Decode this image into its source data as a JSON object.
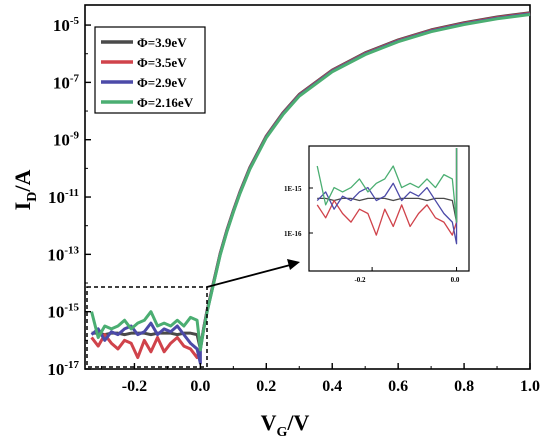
{
  "chart_data": {
    "type": "line",
    "xlabel_main": "V",
    "xlabel_sub": "G",
    "xlabel_rest": "/V",
    "ylabel_main": "I",
    "ylabel_sub": "D",
    "ylabel_rest": "/A",
    "xlim": [
      -0.35,
      1.0
    ],
    "ylim_exp": [
      -17,
      -4.3
    ],
    "yscale": "log",
    "x_ticks": [
      {
        "v": -0.2,
        "label": "-0.2"
      },
      {
        "v": 0.0,
        "label": "0.0"
      },
      {
        "v": 0.2,
        "label": "0.2"
      },
      {
        "v": 0.4,
        "label": "0.4"
      },
      {
        "v": 0.6,
        "label": "0.6"
      },
      {
        "v": 0.8,
        "label": "0.8"
      },
      {
        "v": 1.0,
        "label": "1.0"
      }
    ],
    "y_ticks": [
      {
        "exp": -5,
        "base": "10",
        "sup": "-5"
      },
      {
        "exp": -7,
        "base": "10",
        "sup": "-7"
      },
      {
        "exp": -9,
        "base": "10",
        "sup": "-9"
      },
      {
        "exp": -11,
        "base": "10",
        "sup": "-11"
      },
      {
        "exp": -13,
        "base": "10",
        "sup": "-13"
      },
      {
        "exp": -15,
        "base": "10",
        "sup": "-15"
      },
      {
        "exp": -17,
        "base": "10",
        "sup": "-17"
      }
    ],
    "legend": [
      {
        "label": "Φ=3.9eV",
        "color": "#4a4a4a"
      },
      {
        "label": "Φ=3.5eV",
        "color": "#d0434b"
      },
      {
        "label": "Φ=2.9eV",
        "color": "#4c4aa8"
      },
      {
        "label": "Φ=2.16eV",
        "color": "#4bae72"
      }
    ],
    "legend_position": "top-left",
    "on_curve": [
      [
        0.0,
        -16.3
      ],
      [
        0.01,
        -15.6
      ],
      [
        0.02,
        -15.0
      ],
      [
        0.04,
        -14.0
      ],
      [
        0.06,
        -13.0
      ],
      [
        0.08,
        -12.2
      ],
      [
        0.1,
        -11.5
      ],
      [
        0.12,
        -10.85
      ],
      [
        0.15,
        -10.0
      ],
      [
        0.2,
        -8.9
      ],
      [
        0.25,
        -8.1
      ],
      [
        0.3,
        -7.45
      ],
      [
        0.4,
        -6.6
      ],
      [
        0.5,
        -6.0
      ],
      [
        0.6,
        -5.55
      ],
      [
        0.7,
        -5.2
      ],
      [
        0.8,
        -4.95
      ],
      [
        0.9,
        -4.75
      ],
      [
        1.0,
        -4.6
      ]
    ],
    "off_x": [
      -0.33,
      -0.31,
      -0.29,
      -0.27,
      -0.25,
      -0.23,
      -0.21,
      -0.19,
      -0.17,
      -0.15,
      -0.13,
      -0.11,
      -0.09,
      -0.07,
      -0.05,
      -0.03,
      -0.01,
      0.0
    ],
    "off_series": [
      {
        "name": "Φ=3.9eV",
        "color": "#4a4a4a",
        "y_exp": [
          -15.75,
          -15.75,
          -15.8,
          -15.75,
          -15.75,
          -15.8,
          -15.75,
          -15.75,
          -15.75,
          -15.8,
          -15.75,
          -15.75,
          -15.75,
          -15.8,
          -15.75,
          -15.75,
          -15.8,
          -16.3
        ]
      },
      {
        "name": "Φ=3.5eV",
        "color": "#d0434b",
        "y_exp": [
          -15.9,
          -16.2,
          -15.8,
          -16.1,
          -16.3,
          -16.0,
          -16.1,
          -16.6,
          -16.0,
          -16.4,
          -15.9,
          -16.4,
          -16.1,
          -15.9,
          -16.2,
          -16.3,
          -16.6,
          -16.3
        ]
      },
      {
        "name": "Φ=2.9eV",
        "color": "#4c4aa8",
        "y_exp": [
          -15.8,
          -15.6,
          -16.0,
          -15.7,
          -15.8,
          -15.6,
          -15.5,
          -15.8,
          -15.7,
          -15.4,
          -15.8,
          -15.6,
          -15.7,
          -15.5,
          -15.8,
          -16.1,
          -16.3,
          -16.8
        ]
      },
      {
        "name": "Φ=2.16eV",
        "color": "#4bae72",
        "y_exp": [
          -15.0,
          -15.9,
          -15.5,
          -15.6,
          -15.5,
          -15.3,
          -15.6,
          -15.4,
          -15.3,
          -15.0,
          -15.5,
          -15.4,
          -15.5,
          -15.3,
          -15.5,
          -15.2,
          -15.3,
          -16.3
        ]
      }
    ],
    "inset": {
      "x_tick_label": "-0.2",
      "x_tick_label2": "0.0",
      "y_tick_1": "1E-15",
      "y_tick_2": "1E-16"
    }
  }
}
